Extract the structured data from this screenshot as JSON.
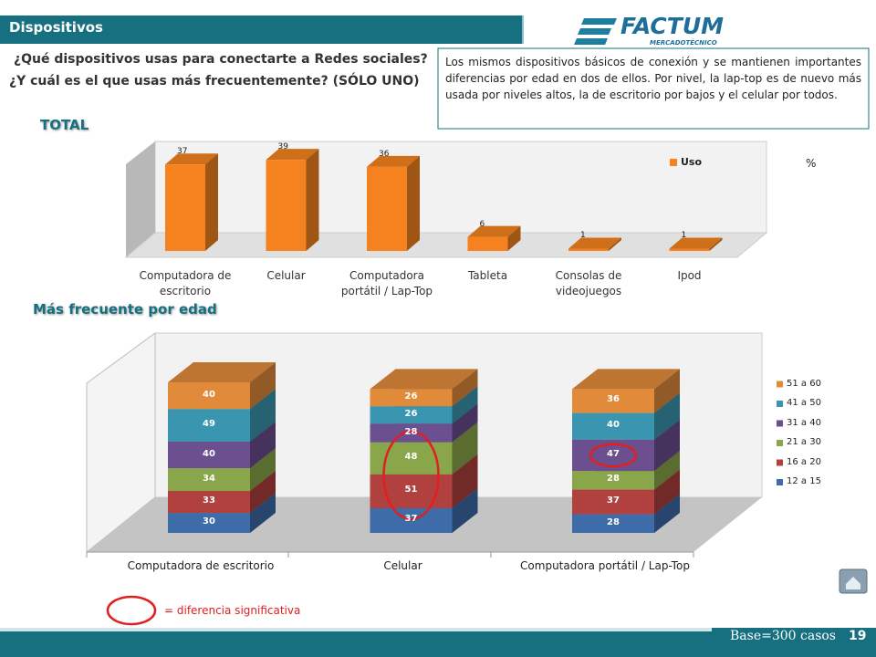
{
  "header": {
    "title": "Dispositivos",
    "logo": "FACTUM",
    "logo_sub": "MERCADOTÉCNICO"
  },
  "question": [
    "¿Qué dispositivos usas para conectarte a Redes sociales?",
    "¿Y cuál es el que usas más frecuentemente? (SÓLO UNO)"
  ],
  "note": "Los mismos dispositivos básicos de conexión  y se mantienen importantes diferencias por edad en dos de ellos. Por nivel, la lap-top es  de nuevo más usada por niveles altos, la de escritorio por bajos y el celular por todos.",
  "chart_data": [
    {
      "type": "bar3d",
      "title": "TOTAL",
      "unit": "%",
      "categories": [
        "Computadora de escritorio",
        "Celular",
        "Computadora portátil / Lap-Top",
        "Tableta",
        "Consolas de videojuegos",
        "Ipod"
      ],
      "series": [
        {
          "name": "Uso",
          "color": "#f5821f",
          "values": [
            37,
            39,
            36,
            6,
            1,
            1
          ]
        }
      ]
    },
    {
      "type": "stacked3d",
      "title": "Más frecuente por edad",
      "categories": [
        "Computadora de escritorio",
        "Celular",
        "Computadora portátil / Lap-Top"
      ],
      "series": [
        {
          "name": "12 a 15",
          "color": "#3d6ca8",
          "values": [
            30,
            37,
            28
          ]
        },
        {
          "name": "16 a 20",
          "color": "#b0413e",
          "values": [
            33,
            51,
            37
          ]
        },
        {
          "name": "21 a 30",
          "color": "#8aa64a",
          "values": [
            34,
            48,
            28
          ]
        },
        {
          "name": "31 a 40",
          "color": "#6b4f8f",
          "values": [
            40,
            28,
            47
          ]
        },
        {
          "name": "41 a 50",
          "color": "#3a96b0",
          "values": [
            49,
            26,
            40
          ]
        },
        {
          "name": "51 a 60",
          "color": "#e08a3a",
          "values": [
            40,
            26,
            36
          ]
        }
      ],
      "highlights": [
        {
          "category": 1,
          "series": [
            1,
            2
          ]
        },
        {
          "category": 2,
          "series": [
            3
          ]
        }
      ],
      "highlight_label": "= diferencia significativa"
    }
  ],
  "footer": {
    "base": "Base=300 casos",
    "page": "19"
  }
}
